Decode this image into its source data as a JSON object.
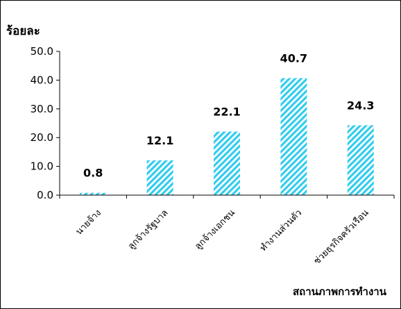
{
  "chart_data": {
    "type": "bar",
    "ylabel": "ร้อยละ",
    "xlabel": "สถานภาพการทำงาน",
    "categories": [
      "นายจ้าง",
      "ลูกจ้างรัฐบาล",
      "ลูกจ้างเอกชน",
      "ทำงานส่วนตัว",
      "ช่วยธุรกิจครัวเรือน"
    ],
    "values": [
      0.8,
      12.1,
      22.1,
      40.7,
      24.3
    ],
    "value_labels": [
      "0.8",
      "12.1",
      "22.1",
      "40.7",
      "24.3"
    ],
    "yticks": [
      "0.0",
      "10.0",
      "20.0",
      "30.0",
      "40.0",
      "50.0"
    ],
    "ylim": [
      0,
      50
    ],
    "grid": false,
    "legend": "none",
    "bar_color": "#33ccee",
    "bar_pattern": "diagonal-hatch"
  }
}
